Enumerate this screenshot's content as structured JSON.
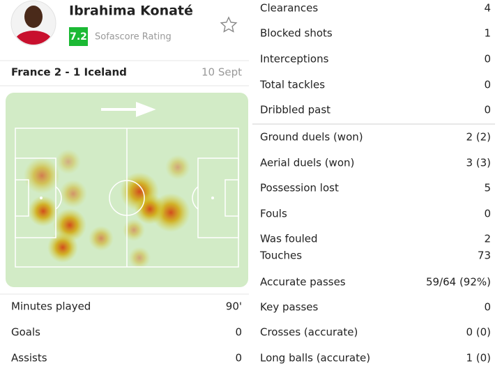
{
  "player": {
    "name": "Ibrahima Konaté",
    "rating": "7.2",
    "rating_label": "Sofascore Rating"
  },
  "match": {
    "title": "France 2 - 1 Iceland",
    "date": "10 Sept"
  },
  "left_stats": [
    {
      "label": "Minutes played",
      "value": "90'"
    },
    {
      "label": "Goals",
      "value": "0"
    },
    {
      "label": "Assists",
      "value": "0"
    }
  ],
  "right_stats": [
    {
      "label": "Clearances",
      "value": "4"
    },
    {
      "label": "Blocked shots",
      "value": "1"
    },
    {
      "label": "Interceptions",
      "value": "0"
    },
    {
      "label": "Total tackles",
      "value": "0"
    },
    {
      "label": "Dribbled past",
      "value": "0"
    },
    {
      "label": "Ground duels (won)",
      "value": "2 (2)"
    },
    {
      "label": "Aerial duels (won)",
      "value": "3 (3)"
    },
    {
      "label": "Possession lost",
      "value": "5"
    },
    {
      "label": "Fouls",
      "value": "0"
    },
    {
      "label": "Was fouled",
      "value": "2"
    },
    {
      "label": "Touches",
      "value": "73"
    },
    {
      "label": "Accurate passes",
      "value": "59/64 (92%)"
    },
    {
      "label": "Key passes",
      "value": "0"
    },
    {
      "label": "Crosses (accurate)",
      "value": "0 (0)"
    },
    {
      "label": "Long balls (accurate)",
      "value": "1 (0)"
    }
  ]
}
